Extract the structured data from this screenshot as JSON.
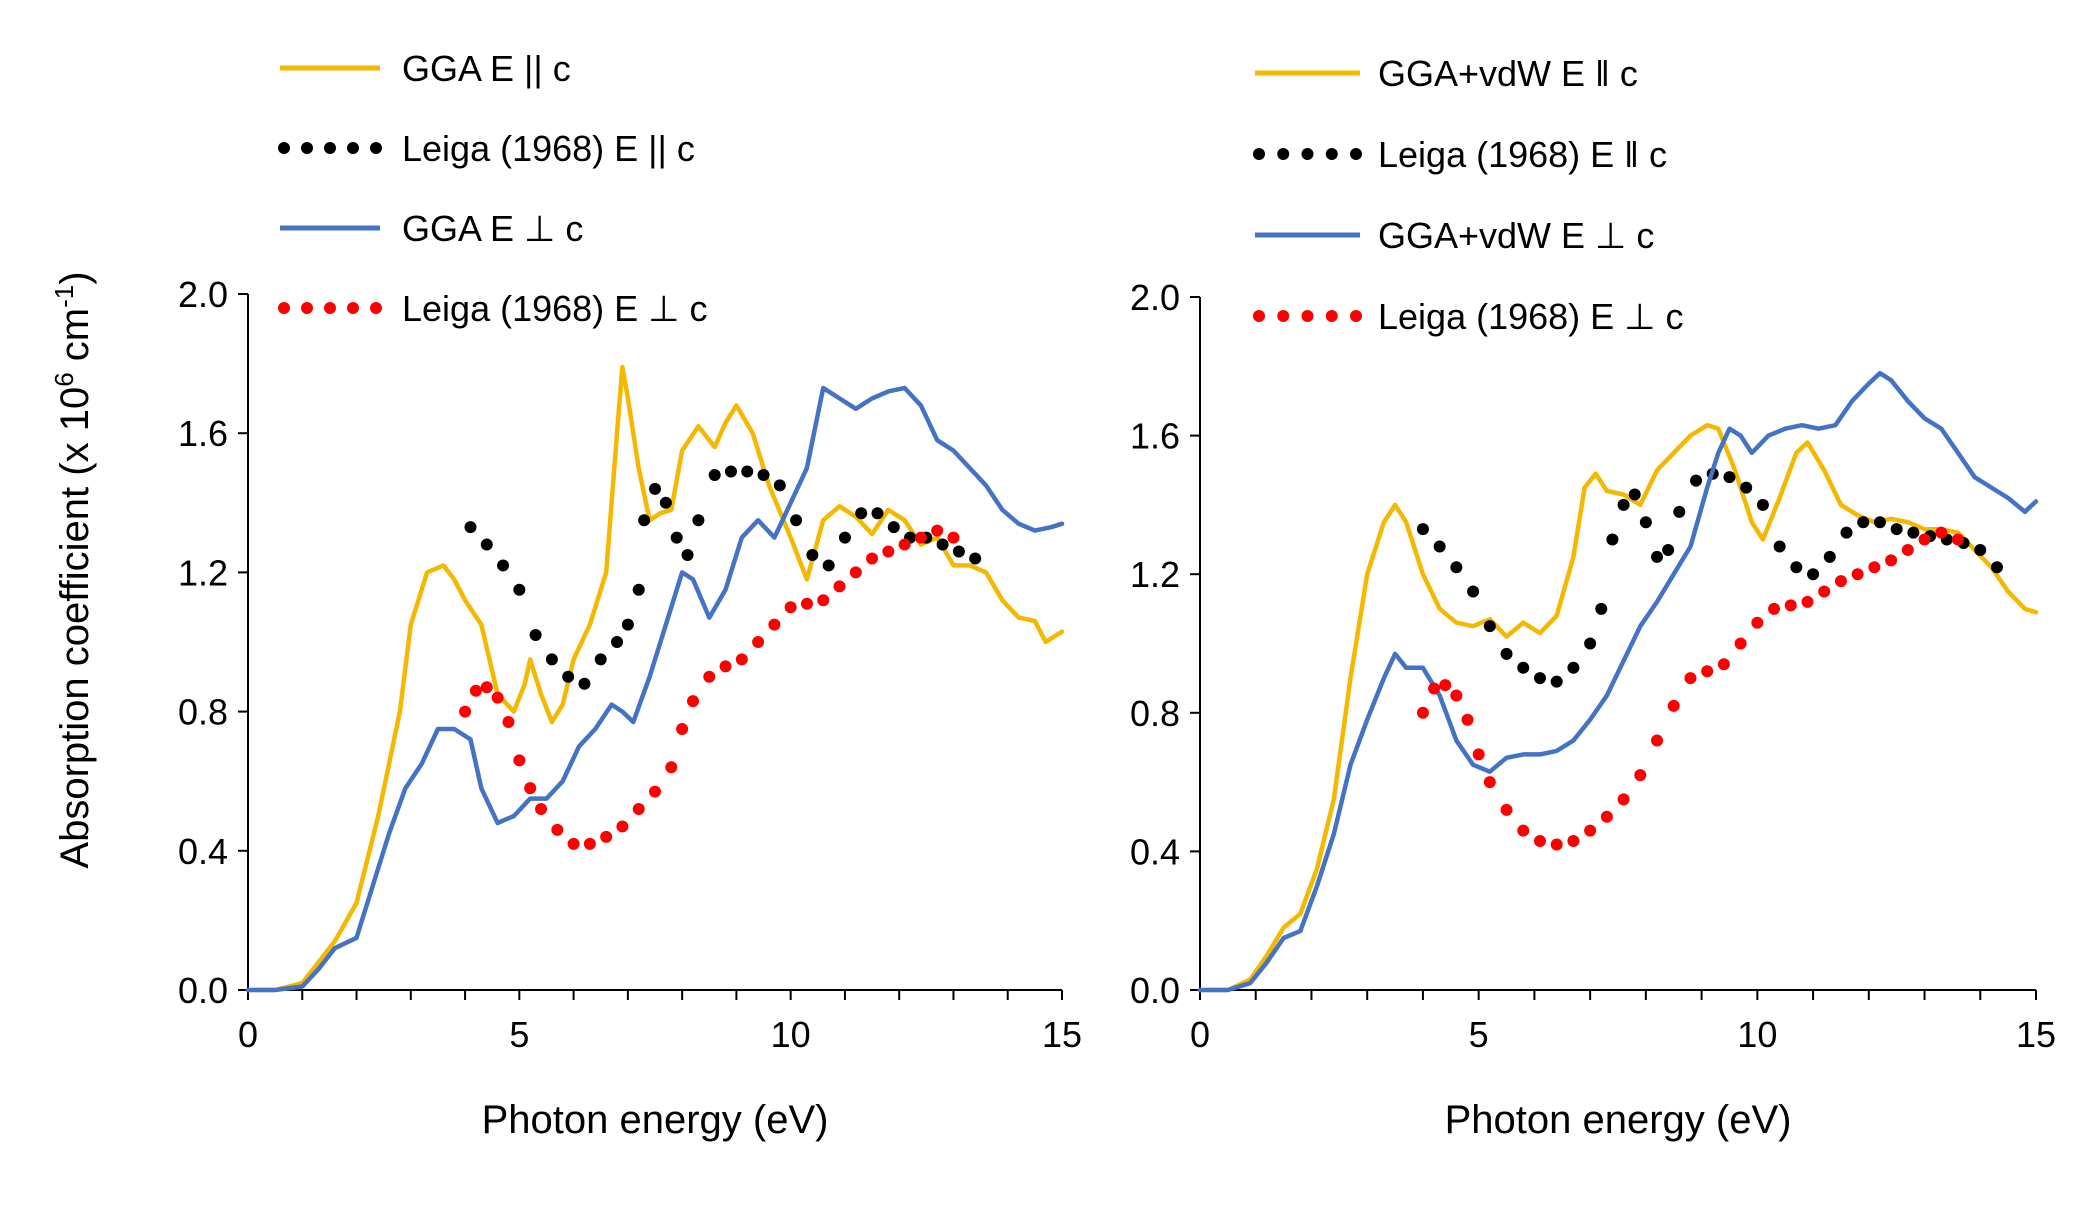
{
  "figure": {
    "y_axis_label_main": "Absorption coefficient (x 10",
    "y_axis_label_exp1": "6",
    "y_axis_label_unit": " cm",
    "y_axis_label_exp2": "-1",
    "y_axis_label_close": ")"
  },
  "chart_data": [
    {
      "type": "line",
      "panel": "left",
      "xlabel": "Photon energy (eV)",
      "ylabel": "Absorption coefficient (x 10^6 cm^-1)",
      "xlim": [
        0,
        15
      ],
      "ylim": [
        0,
        2.0
      ],
      "xticks": [
        "0",
        "5",
        "10",
        "15"
      ],
      "yticks": [
        "0.0",
        "0.4",
        "0.8",
        "1.2",
        "1.6",
        "2.0"
      ],
      "legend_position": "top-left",
      "series": [
        {
          "name": "GGA E || c",
          "color": "#F5B800",
          "style": "solid",
          "x": [
            0,
            0.5,
            1.0,
            1.3,
            1.6,
            2.0,
            2.4,
            2.8,
            3.0,
            3.3,
            3.6,
            3.8,
            4.0,
            4.3,
            4.6,
            4.9,
            5.1,
            5.2,
            5.4,
            5.6,
            5.8,
            6.0,
            6.3,
            6.6,
            6.8,
            6.9,
            7.0,
            7.2,
            7.4,
            7.6,
            7.8,
            8.0,
            8.3,
            8.6,
            8.8,
            9.0,
            9.3,
            9.6,
            10.0,
            10.3,
            10.6,
            10.9,
            11.2,
            11.5,
            11.8,
            12.1,
            12.4,
            12.7,
            13.0,
            13.3,
            13.6,
            13.9,
            14.2,
            14.5,
            14.7,
            15.0
          ],
          "y": [
            0,
            0.0,
            0.02,
            0.08,
            0.14,
            0.25,
            0.5,
            0.8,
            1.05,
            1.2,
            1.22,
            1.18,
            1.12,
            1.05,
            0.85,
            0.8,
            0.88,
            0.95,
            0.85,
            0.77,
            0.82,
            0.95,
            1.05,
            1.2,
            1.6,
            1.79,
            1.7,
            1.5,
            1.35,
            1.37,
            1.38,
            1.55,
            1.62,
            1.56,
            1.63,
            1.68,
            1.6,
            1.45,
            1.3,
            1.18,
            1.35,
            1.39,
            1.36,
            1.31,
            1.38,
            1.35,
            1.28,
            1.3,
            1.22,
            1.22,
            1.2,
            1.12,
            1.07,
            1.06,
            1.0,
            1.03
          ]
        },
        {
          "name": "Leiga (1968) E || c",
          "color": "#000000",
          "style": "dotted",
          "x": [
            4.1,
            4.4,
            4.7,
            5.0,
            5.3,
            5.6,
            5.9,
            6.2,
            6.5,
            6.8,
            7.0,
            7.2,
            7.3,
            7.5,
            7.7,
            7.9,
            8.1,
            8.3,
            8.6,
            8.9,
            9.2,
            9.5,
            9.8,
            10.1,
            10.4,
            10.7,
            11.0,
            11.3,
            11.6,
            11.9,
            12.2,
            12.5,
            12.8,
            13.1,
            13.4
          ],
          "y": [
            1.33,
            1.28,
            1.22,
            1.15,
            1.02,
            0.95,
            0.9,
            0.88,
            0.95,
            1.0,
            1.05,
            1.15,
            1.35,
            1.44,
            1.4,
            1.3,
            1.25,
            1.35,
            1.48,
            1.49,
            1.49,
            1.48,
            1.45,
            1.35,
            1.25,
            1.22,
            1.3,
            1.37,
            1.37,
            1.33,
            1.3,
            1.3,
            1.28,
            1.26,
            1.24
          ]
        },
        {
          "name": "GGA E ⊥ c",
          "color": "#4472C4",
          "style": "solid",
          "x": [
            0,
            0.5,
            1.0,
            1.3,
            1.6,
            2.0,
            2.3,
            2.6,
            2.9,
            3.2,
            3.5,
            3.8,
            4.1,
            4.3,
            4.6,
            4.9,
            5.2,
            5.5,
            5.8,
            6.1,
            6.4,
            6.7,
            6.9,
            7.1,
            7.4,
            7.7,
            8.0,
            8.2,
            8.5,
            8.8,
            9.1,
            9.4,
            9.7,
            10.0,
            10.3,
            10.6,
            10.9,
            11.2,
            11.5,
            11.8,
            12.1,
            12.4,
            12.7,
            13.0,
            13.3,
            13.6,
            13.9,
            14.2,
            14.5,
            14.8,
            15.0
          ],
          "y": [
            0,
            0.0,
            0.01,
            0.06,
            0.12,
            0.15,
            0.3,
            0.45,
            0.58,
            0.65,
            0.75,
            0.75,
            0.72,
            0.58,
            0.48,
            0.5,
            0.55,
            0.55,
            0.6,
            0.7,
            0.75,
            0.82,
            0.8,
            0.77,
            0.9,
            1.05,
            1.2,
            1.18,
            1.07,
            1.15,
            1.3,
            1.35,
            1.3,
            1.4,
            1.5,
            1.73,
            1.7,
            1.67,
            1.7,
            1.72,
            1.73,
            1.68,
            1.58,
            1.55,
            1.5,
            1.45,
            1.38,
            1.34,
            1.32,
            1.33,
            1.34
          ]
        },
        {
          "name": "Leiga (1968) E ⊥ c",
          "color": "#FF0000",
          "style": "dotted",
          "x": [
            4.0,
            4.2,
            4.4,
            4.6,
            4.8,
            5.0,
            5.2,
            5.4,
            5.7,
            6.0,
            6.3,
            6.6,
            6.9,
            7.2,
            7.5,
            7.8,
            8.0,
            8.2,
            8.5,
            8.8,
            9.1,
            9.4,
            9.7,
            10.0,
            10.3,
            10.6,
            10.9,
            11.2,
            11.5,
            11.8,
            12.1,
            12.4,
            12.7,
            13.0
          ],
          "y": [
            0.8,
            0.86,
            0.87,
            0.84,
            0.77,
            0.66,
            0.58,
            0.52,
            0.46,
            0.42,
            0.42,
            0.44,
            0.47,
            0.52,
            0.57,
            0.64,
            0.75,
            0.83,
            0.9,
            0.93,
            0.95,
            1.0,
            1.05,
            1.1,
            1.11,
            1.12,
            1.16,
            1.2,
            1.24,
            1.26,
            1.28,
            1.3,
            1.32,
            1.3
          ]
        }
      ]
    },
    {
      "type": "line",
      "panel": "right",
      "xlabel": "Photon energy (eV)",
      "ylabel": "",
      "xlim": [
        0,
        15
      ],
      "ylim": [
        0,
        2.0
      ],
      "xticks": [
        "0",
        "5",
        "10",
        "15"
      ],
      "yticks": [
        "0.0",
        "0.4",
        "0.8",
        "1.2",
        "1.6",
        "2.0"
      ],
      "legend_position": "top-left",
      "series": [
        {
          "name": "GGA+vdW E ǁ c",
          "color": "#F5B800",
          "style": "solid",
          "x": [
            0,
            0.5,
            0.9,
            1.2,
            1.5,
            1.8,
            2.1,
            2.4,
            2.7,
            3.0,
            3.3,
            3.5,
            3.7,
            4.0,
            4.3,
            4.6,
            4.9,
            5.2,
            5.5,
            5.8,
            6.1,
            6.4,
            6.7,
            6.9,
            7.1,
            7.3,
            7.6,
            7.9,
            8.2,
            8.5,
            8.8,
            9.1,
            9.3,
            9.6,
            9.9,
            10.1,
            10.4,
            10.7,
            10.9,
            11.2,
            11.5,
            11.8,
            12.1,
            12.4,
            12.7,
            13.0,
            13.3,
            13.6,
            13.9,
            14.2,
            14.5,
            14.8,
            15.0
          ],
          "y": [
            0,
            0.0,
            0.03,
            0.1,
            0.18,
            0.22,
            0.35,
            0.55,
            0.9,
            1.2,
            1.35,
            1.4,
            1.35,
            1.2,
            1.1,
            1.06,
            1.05,
            1.07,
            1.02,
            1.06,
            1.03,
            1.08,
            1.25,
            1.45,
            1.49,
            1.44,
            1.43,
            1.4,
            1.5,
            1.55,
            1.6,
            1.63,
            1.62,
            1.5,
            1.35,
            1.3,
            1.42,
            1.55,
            1.58,
            1.5,
            1.4,
            1.37,
            1.35,
            1.36,
            1.35,
            1.33,
            1.33,
            1.32,
            1.27,
            1.22,
            1.15,
            1.1,
            1.09
          ]
        },
        {
          "name": "Leiga (1968) E ǁ c",
          "color": "#000000",
          "style": "dotted",
          "x": [
            4.0,
            4.3,
            4.6,
            4.9,
            5.2,
            5.5,
            5.8,
            6.1,
            6.4,
            6.7,
            7.0,
            7.2,
            7.4,
            7.6,
            7.8,
            8.0,
            8.2,
            8.4,
            8.6,
            8.9,
            9.2,
            9.5,
            9.8,
            10.1,
            10.4,
            10.7,
            11.0,
            11.3,
            11.6,
            11.9,
            12.2,
            12.5,
            12.8,
            13.1,
            13.4,
            13.7,
            14.0,
            14.3
          ],
          "y": [
            1.33,
            1.28,
            1.22,
            1.15,
            1.05,
            0.97,
            0.93,
            0.9,
            0.89,
            0.93,
            1.0,
            1.1,
            1.3,
            1.4,
            1.43,
            1.35,
            1.25,
            1.27,
            1.38,
            1.47,
            1.49,
            1.48,
            1.45,
            1.4,
            1.28,
            1.22,
            1.2,
            1.25,
            1.32,
            1.35,
            1.35,
            1.33,
            1.32,
            1.31,
            1.3,
            1.29,
            1.27,
            1.22
          ]
        },
        {
          "name": "GGA+vdW E ⊥ c",
          "color": "#4472C4",
          "style": "solid",
          "x": [
            0,
            0.5,
            0.9,
            1.2,
            1.5,
            1.8,
            2.1,
            2.4,
            2.7,
            3.0,
            3.3,
            3.5,
            3.7,
            4.0,
            4.3,
            4.6,
            4.9,
            5.2,
            5.5,
            5.8,
            6.1,
            6.4,
            6.7,
            7.0,
            7.3,
            7.6,
            7.9,
            8.2,
            8.5,
            8.8,
            9.1,
            9.3,
            9.5,
            9.7,
            9.9,
            10.2,
            10.5,
            10.8,
            11.1,
            11.4,
            11.7,
            12.0,
            12.2,
            12.4,
            12.7,
            13.0,
            13.3,
            13.6,
            13.9,
            14.2,
            14.5,
            14.8,
            15.0
          ],
          "y": [
            0,
            0.0,
            0.02,
            0.08,
            0.15,
            0.17,
            0.3,
            0.45,
            0.65,
            0.78,
            0.9,
            0.97,
            0.93,
            0.93,
            0.85,
            0.72,
            0.65,
            0.63,
            0.67,
            0.68,
            0.68,
            0.69,
            0.72,
            0.78,
            0.85,
            0.95,
            1.05,
            1.12,
            1.2,
            1.28,
            1.45,
            1.55,
            1.62,
            1.6,
            1.55,
            1.6,
            1.62,
            1.63,
            1.62,
            1.63,
            1.7,
            1.75,
            1.78,
            1.76,
            1.7,
            1.65,
            1.62,
            1.55,
            1.48,
            1.45,
            1.42,
            1.38,
            1.41
          ]
        },
        {
          "name": "Leiga (1968) E ⊥ c",
          "color": "#FF0000",
          "style": "dotted",
          "x": [
            4.0,
            4.2,
            4.4,
            4.6,
            4.8,
            5.0,
            5.2,
            5.5,
            5.8,
            6.1,
            6.4,
            6.7,
            7.0,
            7.3,
            7.6,
            7.9,
            8.2,
            8.5,
            8.8,
            9.1,
            9.4,
            9.7,
            10.0,
            10.3,
            10.6,
            10.9,
            11.2,
            11.5,
            11.8,
            12.1,
            12.4,
            12.7,
            13.0,
            13.3,
            13.6
          ],
          "y": [
            0.8,
            0.87,
            0.88,
            0.85,
            0.78,
            0.68,
            0.6,
            0.52,
            0.46,
            0.43,
            0.42,
            0.43,
            0.46,
            0.5,
            0.55,
            0.62,
            0.72,
            0.82,
            0.9,
            0.92,
            0.94,
            1.0,
            1.06,
            1.1,
            1.11,
            1.12,
            1.15,
            1.18,
            1.2,
            1.22,
            1.24,
            1.27,
            1.3,
            1.32,
            1.3
          ]
        }
      ]
    }
  ]
}
